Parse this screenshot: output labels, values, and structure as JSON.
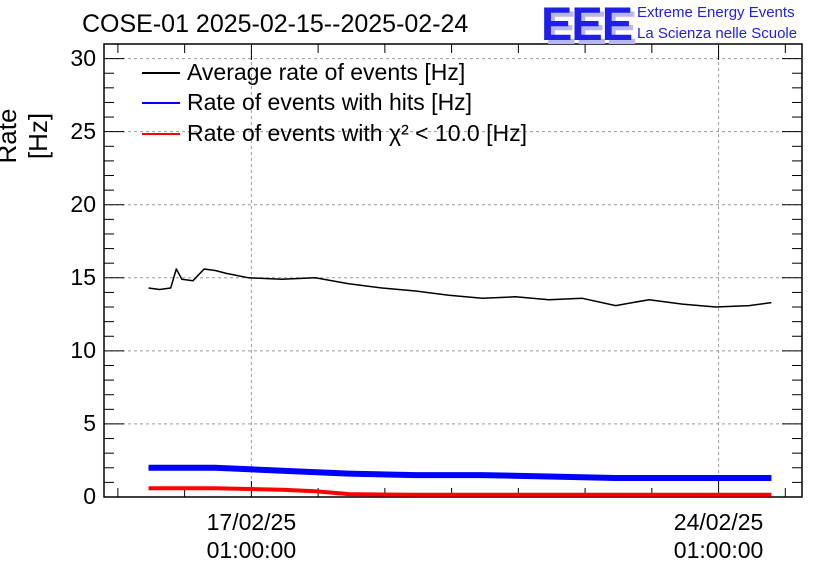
{
  "chart_data": {
    "type": "line",
    "title": "COSE-01 2025-02-15--2025-02-24",
    "ylabel": "Rate [Hz]",
    "xlabel": "",
    "ylim": [
      0,
      31
    ],
    "yticks": [
      0,
      5,
      10,
      15,
      20,
      25,
      30
    ],
    "xticks": [
      {
        "date": "17/02/25",
        "time": "01:00:00",
        "x": "2025-02-17T01:00:00"
      },
      {
        "date": "24/02/25",
        "time": "01:00:00",
        "x": "2025-02-24T01:00:00"
      }
    ],
    "xlim": [
      "2025-02-14T20:00:00",
      "2025-02-25T07:00:00"
    ],
    "grid": true,
    "legend_position": "top-left",
    "series": [
      {
        "name": "Average rate of events [Hz]",
        "color": "#000000",
        "x": [
          "2025-02-15T12:00:00",
          "2025-02-15T16:00:00",
          "2025-02-15T20:00:00",
          "2025-02-15T22:00:00",
          "2025-02-16T00:00:00",
          "2025-02-16T04:00:00",
          "2025-02-16T08:00:00",
          "2025-02-16T12:00:00",
          "2025-02-16T16:00:00",
          "2025-02-17T00:00:00",
          "2025-02-17T12:00:00",
          "2025-02-18T00:00:00",
          "2025-02-18T12:00:00",
          "2025-02-19T00:00:00",
          "2025-02-19T12:00:00",
          "2025-02-20T00:00:00",
          "2025-02-20T12:00:00",
          "2025-02-21T00:00:00",
          "2025-02-21T12:00:00",
          "2025-02-22T00:00:00",
          "2025-02-22T12:00:00",
          "2025-02-23T00:00:00",
          "2025-02-23T12:00:00",
          "2025-02-24T00:00:00",
          "2025-02-24T12:00:00",
          "2025-02-24T20:00:00"
        ],
        "y": [
          14.3,
          14.2,
          14.3,
          15.6,
          14.9,
          14.8,
          15.6,
          15.5,
          15.3,
          15.0,
          14.9,
          15.0,
          14.6,
          14.3,
          14.1,
          13.8,
          13.6,
          13.7,
          13.5,
          13.6,
          13.1,
          13.5,
          13.2,
          13.0,
          13.1,
          13.3
        ]
      },
      {
        "name": "Rate of events with hits [Hz]",
        "color": "#0000ff",
        "x": [
          "2025-02-15T12:00:00",
          "2025-02-16T12:00:00",
          "2025-02-17T12:00:00",
          "2025-02-18T12:00:00",
          "2025-02-19T12:00:00",
          "2025-02-20T12:00:00",
          "2025-02-21T12:00:00",
          "2025-02-22T12:00:00",
          "2025-02-23T12:00:00",
          "2025-02-24T20:00:00"
        ],
        "y": [
          2.0,
          2.0,
          1.8,
          1.6,
          1.5,
          1.5,
          1.4,
          1.3,
          1.3,
          1.3
        ]
      },
      {
        "name": "Rate of events with χ² < 10.0 [Hz]",
        "color": "#ff0000",
        "x": [
          "2025-02-15T12:00:00",
          "2025-02-16T12:00:00",
          "2025-02-17T12:00:00",
          "2025-02-18T00:00:00",
          "2025-02-18T12:00:00",
          "2025-02-19T12:00:00",
          "2025-02-20T12:00:00",
          "2025-02-21T12:00:00",
          "2025-02-22T12:00:00",
          "2025-02-23T12:00:00",
          "2025-02-24T20:00:00"
        ],
        "y": [
          0.6,
          0.6,
          0.5,
          0.4,
          0.2,
          0.15,
          0.15,
          0.15,
          0.15,
          0.15,
          0.15
        ]
      }
    ]
  },
  "logo": {
    "mark": "EEE",
    "line1": "Extreme Energy Events",
    "line2": "La Scienza nelle Scuole"
  }
}
